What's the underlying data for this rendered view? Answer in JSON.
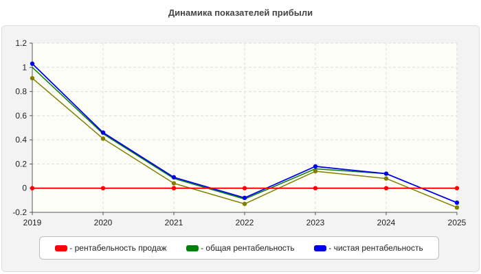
{
  "chart_data": {
    "type": "line",
    "title": "Динамика показателей прибыли",
    "xlabel": "",
    "ylabel": "",
    "x": [
      "2019",
      "2020",
      "2021",
      "2022",
      "2023",
      "2024",
      "2025"
    ],
    "ylim": [
      -0.2,
      1.2
    ],
    "yticks": [
      "-0.2",
      "0",
      "0.2",
      "0.4",
      "0.6",
      "0.8",
      "1",
      "1.2"
    ],
    "grid": true,
    "legend_position": "bottom",
    "series": [
      {
        "name": "- рентабельность продаж",
        "color": "#ff0000",
        "values": [
          0,
          0,
          0,
          0,
          0,
          0,
          0
        ]
      },
      {
        "name": "- общая рентабельность",
        "color": "#808000",
        "legend_color": "#008000",
        "values": [
          0.91,
          0.41,
          0.04,
          -0.13,
          0.14,
          0.08,
          -0.16
        ]
      },
      {
        "name": "- чистая рентабельность",
        "color": "#0000ee",
        "values": [
          1.03,
          0.46,
          0.09,
          -0.08,
          0.18,
          0.12,
          -0.12
        ]
      }
    ],
    "extra_series_line": {
      "color": "#008000",
      "values": [
        1.0,
        0.45,
        0.08,
        -0.09,
        0.16,
        0.12,
        -0.12
      ]
    }
  }
}
